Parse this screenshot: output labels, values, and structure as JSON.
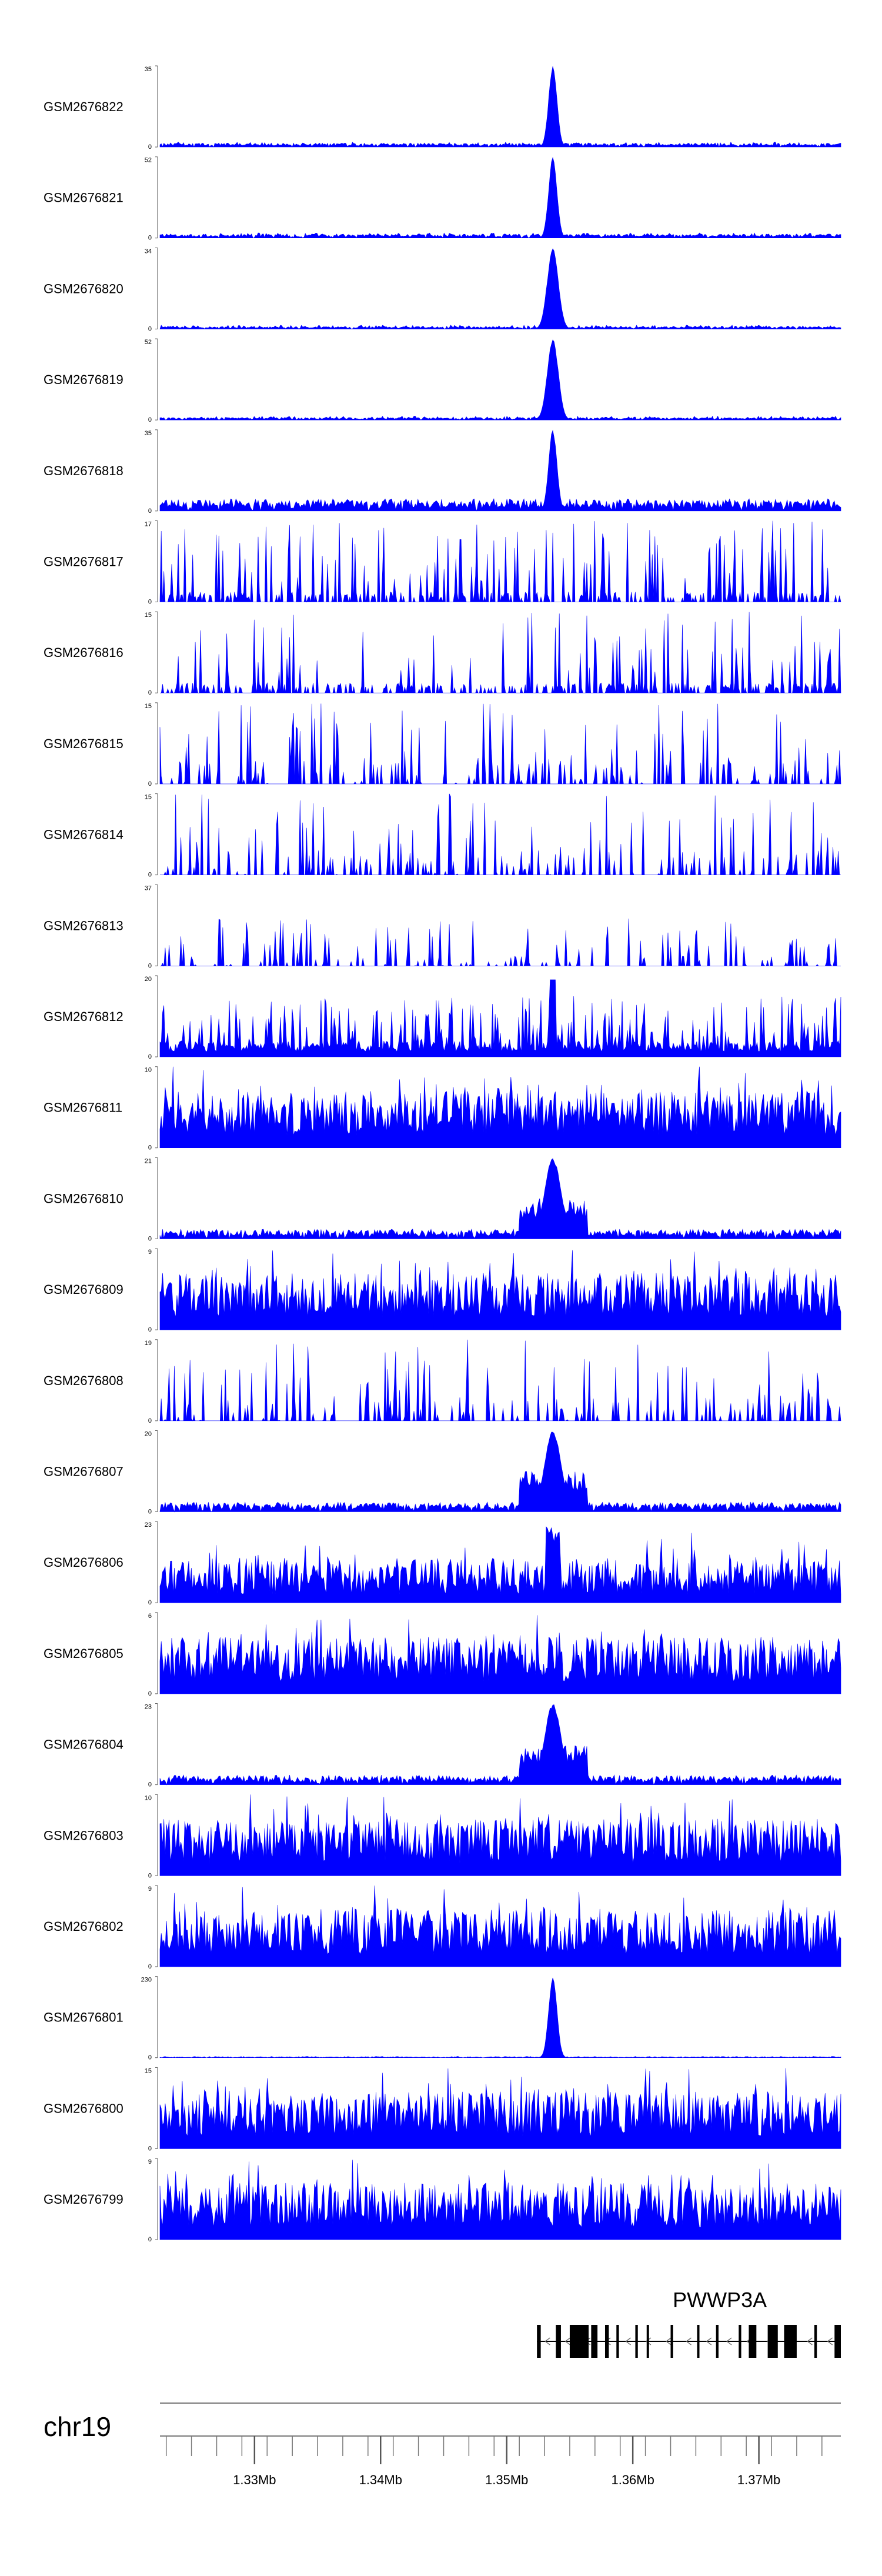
{
  "chart_data": {
    "type": "area",
    "title": "",
    "chromosome": "chr19",
    "xrange": [
      1.3225,
      1.3765
    ],
    "xunit": "Mb",
    "color": "#0000ff",
    "tracks": [
      {
        "name": "GSM2676822",
        "ymax": 35,
        "ymin": 0,
        "profile": "peak-low",
        "seed": 1
      },
      {
        "name": "GSM2676821",
        "ymax": 52,
        "ymin": 0,
        "profile": "peak-low",
        "seed": 2
      },
      {
        "name": "GSM2676820",
        "ymax": 34,
        "ymin": 0,
        "profile": "peak-wide",
        "seed": 3
      },
      {
        "name": "GSM2676819",
        "ymax": 52,
        "ymin": 0,
        "profile": "peak-wide",
        "seed": 4
      },
      {
        "name": "GSM2676818",
        "ymax": 35,
        "ymin": 0,
        "profile": "peak-med",
        "seed": 5
      },
      {
        "name": "GSM2676817",
        "ymax": 17,
        "ymin": 0,
        "profile": "sparse",
        "seed": 6
      },
      {
        "name": "GSM2676816",
        "ymax": 15,
        "ymin": 0,
        "profile": "sparse",
        "seed": 7
      },
      {
        "name": "GSM2676815",
        "ymax": 15,
        "ymin": 0,
        "profile": "triangles",
        "seed": 8
      },
      {
        "name": "GSM2676814",
        "ymax": 15,
        "ymin": 0,
        "profile": "triangles",
        "seed": 9
      },
      {
        "name": "GSM2676813",
        "ymax": 37,
        "ymin": 0,
        "profile": "triangles-low",
        "seed": 10
      },
      {
        "name": "GSM2676812",
        "ymax": 20,
        "ymin": 0,
        "profile": "medium",
        "seed": 11
      },
      {
        "name": "GSM2676811",
        "ymax": 10,
        "ymin": 0,
        "profile": "dense",
        "seed": 12
      },
      {
        "name": "GSM2676810",
        "ymax": 21,
        "ymin": 0,
        "profile": "peak-hump",
        "seed": 13
      },
      {
        "name": "GSM2676809",
        "ymax": 9,
        "ymin": 0,
        "profile": "dense",
        "seed": 14
      },
      {
        "name": "GSM2676808",
        "ymax": 19,
        "ymin": 0,
        "profile": "triangles",
        "seed": 15
      },
      {
        "name": "GSM2676807",
        "ymax": 20,
        "ymin": 0,
        "profile": "peak-hump",
        "seed": 16
      },
      {
        "name": "GSM2676806",
        "ymax": 23,
        "ymin": 0,
        "profile": "medium-peak",
        "seed": 17
      },
      {
        "name": "GSM2676805",
        "ymax": 6,
        "ymin": 0,
        "profile": "dense",
        "seed": 18
      },
      {
        "name": "GSM2676804",
        "ymax": 23,
        "ymin": 0,
        "profile": "peak-hump",
        "seed": 19
      },
      {
        "name": "GSM2676803",
        "ymax": 10,
        "ymin": 0,
        "profile": "dense",
        "seed": 20
      },
      {
        "name": "GSM2676802",
        "ymax": 9,
        "ymin": 0,
        "profile": "dense",
        "seed": 21
      },
      {
        "name": "GSM2676801",
        "ymax": 230,
        "ymin": 0,
        "profile": "spike",
        "seed": 22
      },
      {
        "name": "GSM2676800",
        "ymax": 15,
        "ymin": 0,
        "profile": "dense",
        "seed": 23
      },
      {
        "name": "GSM2676799",
        "ymax": 9,
        "ymin": 0,
        "profile": "dense",
        "seed": 24
      }
    ],
    "gene": {
      "name": "PWWP3A",
      "strand": "-",
      "start": 1.3524,
      "end": 1.3765,
      "exons": [
        [
          1.3524,
          1.3527
        ],
        [
          1.3539,
          1.3543
        ],
        [
          1.355,
          1.3565
        ],
        [
          1.3567,
          1.3572
        ],
        [
          1.3578,
          1.3581
        ],
        [
          1.3587,
          1.3589
        ],
        [
          1.3602,
          1.3604
        ],
        [
          1.3611,
          1.3612
        ],
        [
          1.363,
          1.3632
        ],
        [
          1.3651,
          1.3652
        ],
        [
          1.3666,
          1.3668
        ],
        [
          1.3684,
          1.3686
        ],
        [
          1.3692,
          1.3698
        ],
        [
          1.3707,
          1.3715
        ],
        [
          1.372,
          1.373
        ],
        [
          1.3744,
          1.3746
        ],
        [
          1.376,
          1.3765
        ]
      ]
    },
    "axis": {
      "ticks": [
        1.323,
        1.325,
        1.327,
        1.329,
        1.331,
        1.333,
        1.335,
        1.337,
        1.339,
        1.341,
        1.343,
        1.345,
        1.347,
        1.349,
        1.351,
        1.353,
        1.355,
        1.357,
        1.359,
        1.361,
        1.363,
        1.365,
        1.367,
        1.369,
        1.371,
        1.373,
        1.375
      ],
      "major_ticks": [
        1.33,
        1.34,
        1.35,
        1.36,
        1.37
      ],
      "major_labels": [
        "1.33Mb",
        "1.34Mb",
        "1.35Mb",
        "1.36Mb",
        "1.37Mb"
      ]
    }
  }
}
